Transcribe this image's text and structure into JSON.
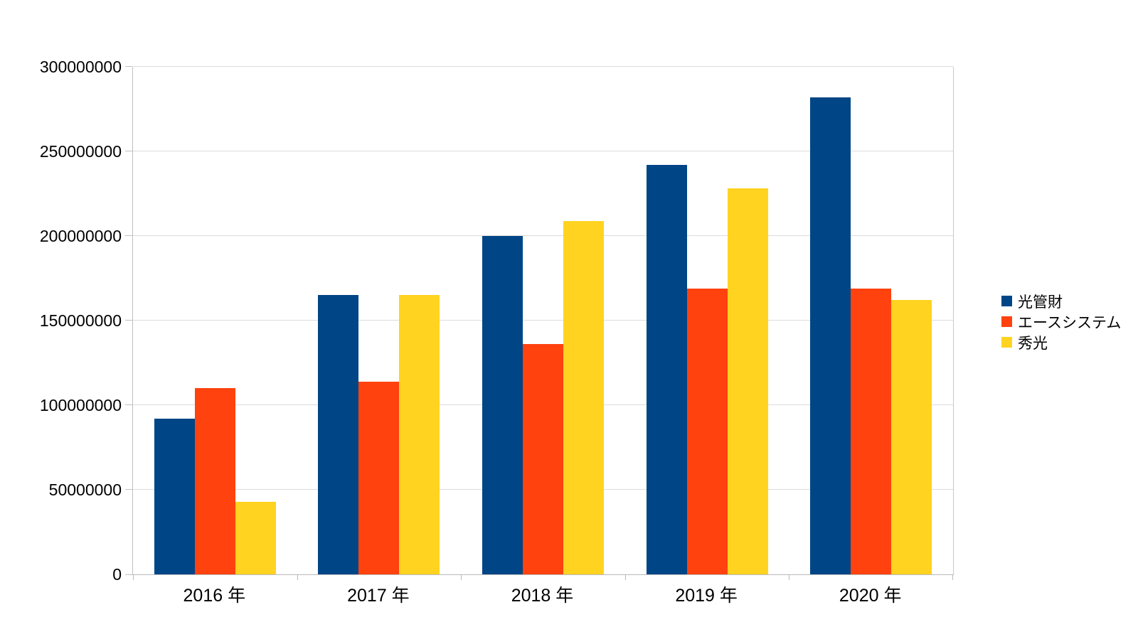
{
  "chart_data": {
    "type": "bar",
    "title": "",
    "xlabel": "",
    "ylabel": "",
    "categories": [
      "2016 年",
      "2017 年",
      "2018 年",
      "2019 年",
      "2020 年"
    ],
    "series": [
      {
        "name": "光管財",
        "color": "#004586",
        "values": [
          92000000,
          165000000,
          200000000,
          242000000,
          282000000
        ]
      },
      {
        "name": "エースシステム",
        "color": "#FF420E",
        "values": [
          110000000,
          114000000,
          136000000,
          169000000,
          169000000
        ]
      },
      {
        "name": "秀光",
        "color": "#FFD320",
        "values": [
          43000000,
          165000000,
          209000000,
          228000000,
          162000000
        ]
      }
    ],
    "ylim": [
      0,
      300000000
    ],
    "ytick_interval": 50000000,
    "ytick_labels": [
      "0",
      "50000000",
      "100000000",
      "150000000",
      "200000000",
      "250000000",
      "300000000"
    ],
    "grid": true,
    "legend_position": "right",
    "colors": {
      "background": "#ffffff",
      "gridline": "#dcdcdc",
      "axis": "#b9b9b9",
      "text": "#000000"
    }
  }
}
